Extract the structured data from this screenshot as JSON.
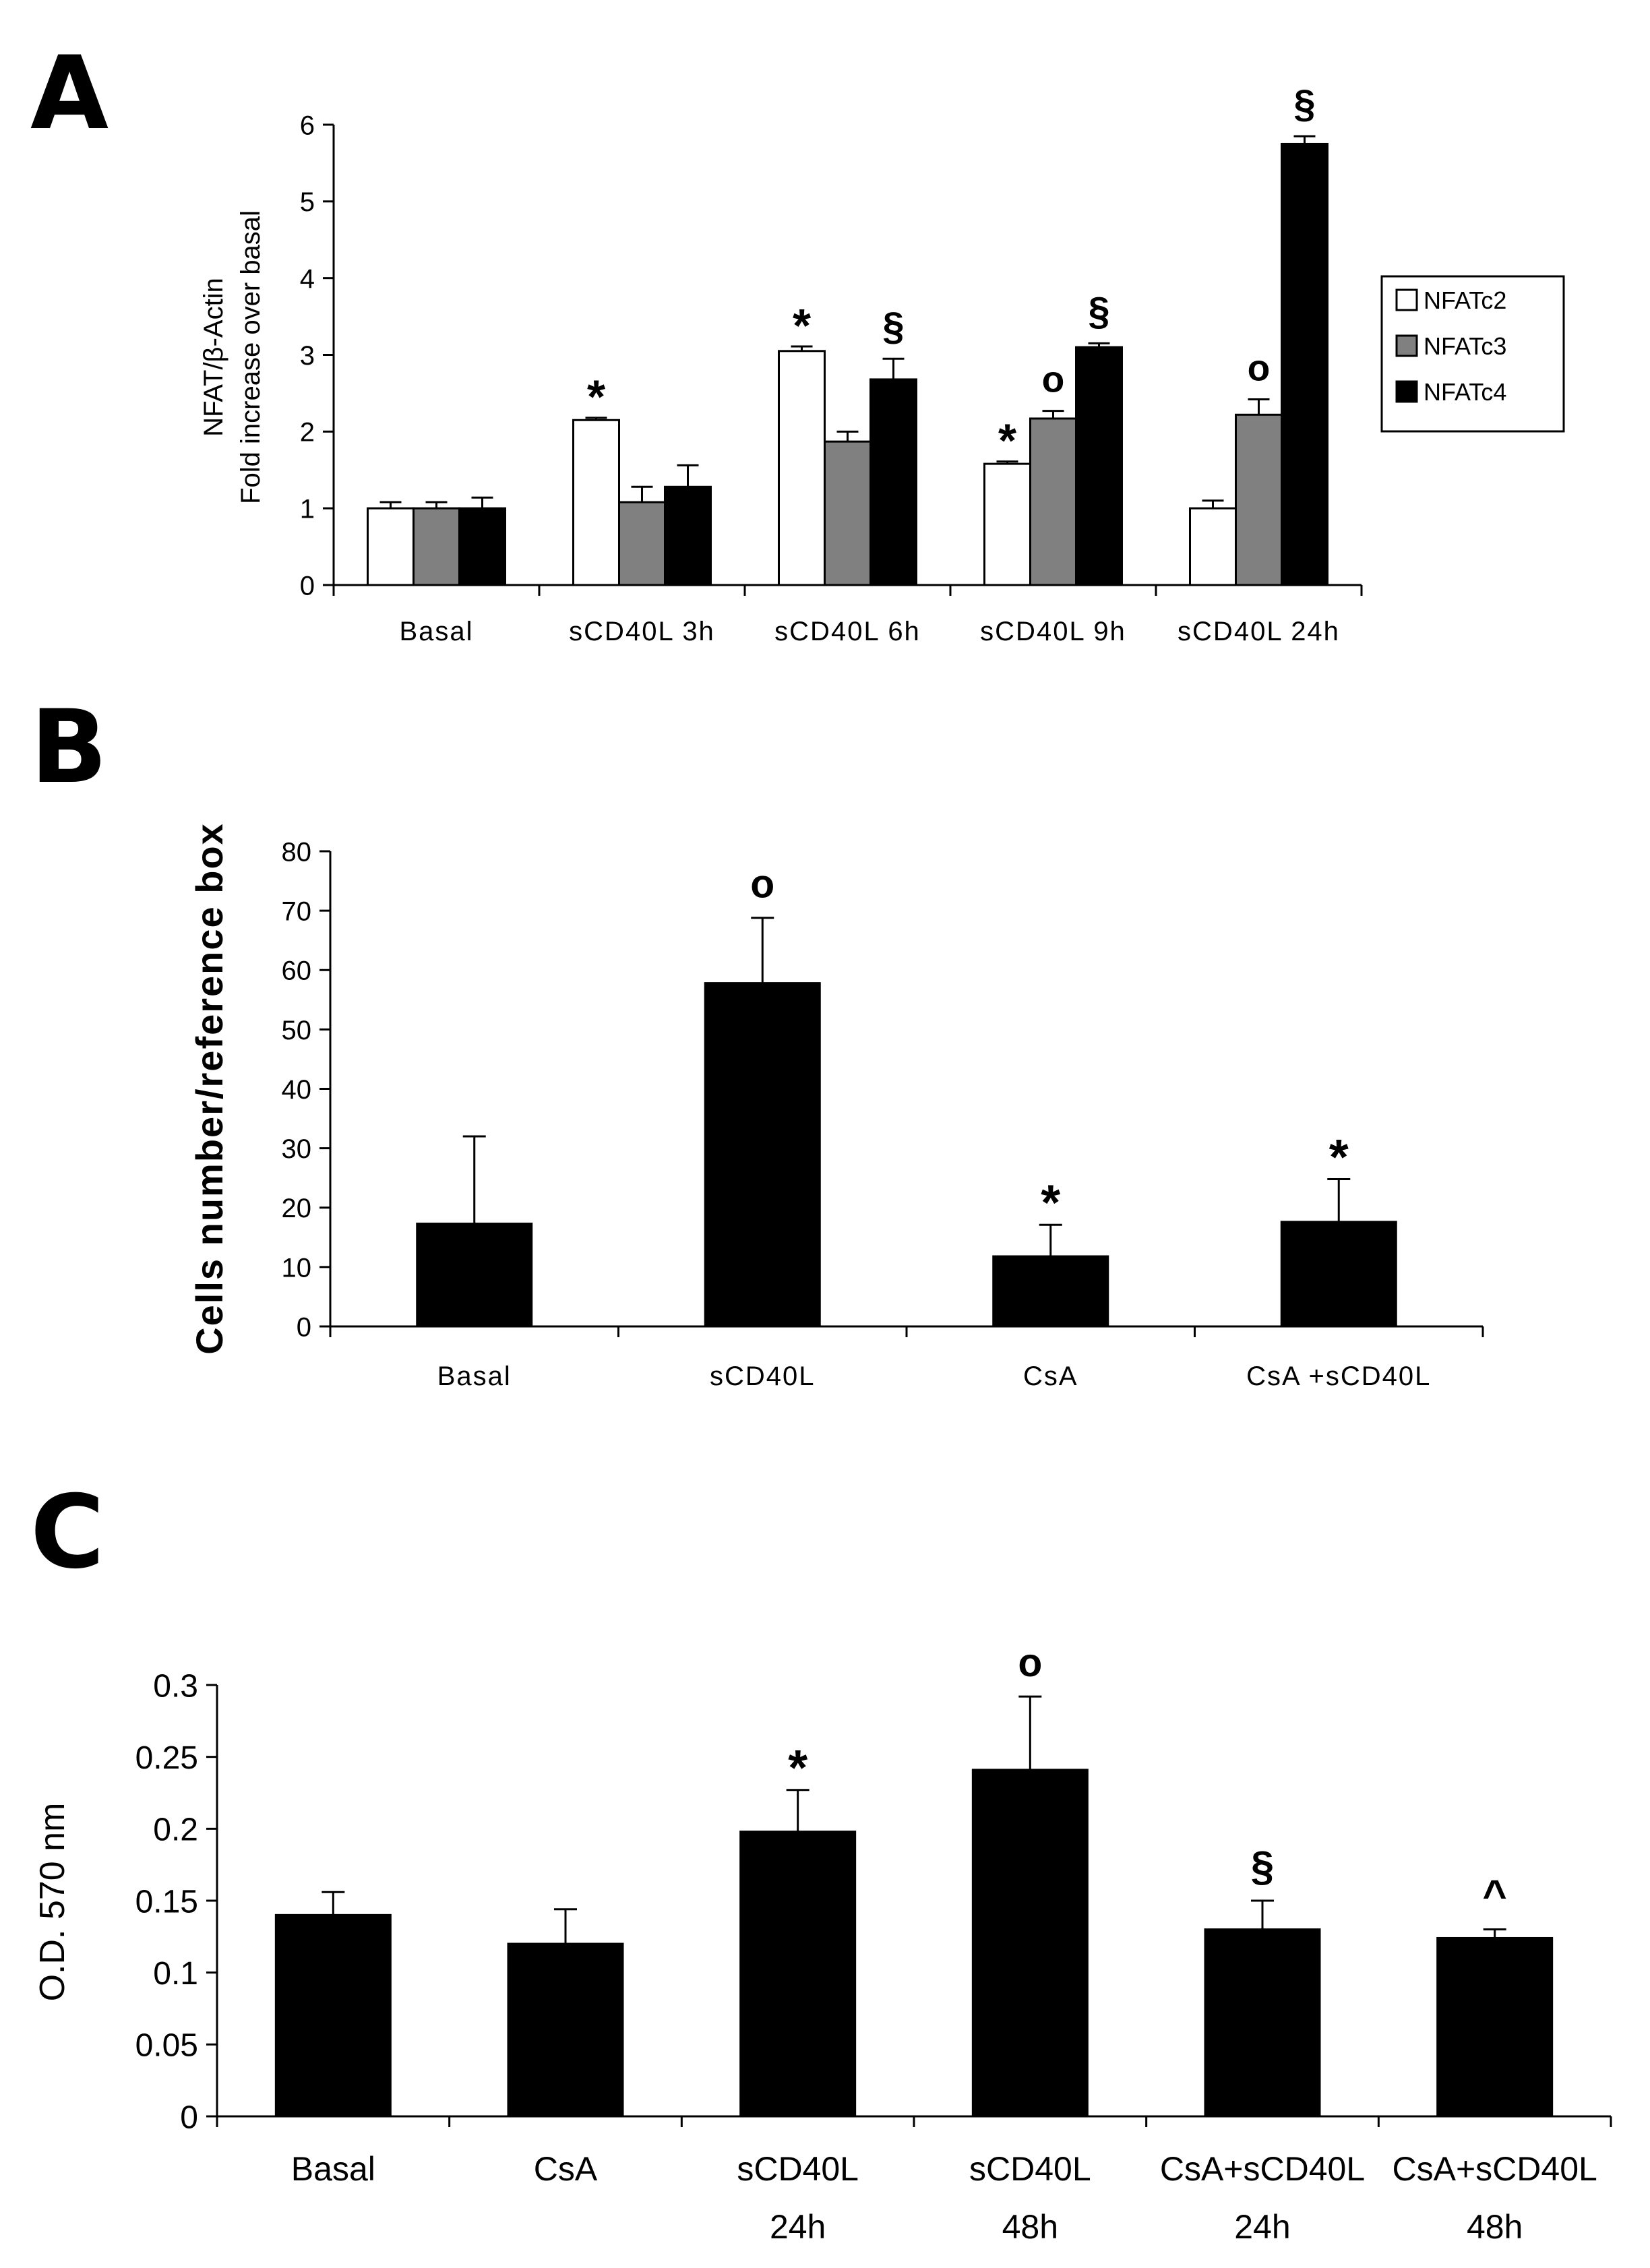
{
  "chart_data": [
    {
      "panel_label": "A",
      "type": "bar",
      "ylabel_line1": "NFAT/β-Actin",
      "ylabel_line2": "Fold increase over basal",
      "ylim": [
        0,
        6
      ],
      "yticks": [
        "0",
        "1",
        "2",
        "3",
        "4",
        "5",
        "6"
      ],
      "categories": [
        "Basal",
        "sCD40L 3h",
        "sCD40L 6h",
        "sCD40L 9h",
        "sCD40L 24h"
      ],
      "legend_position": "right",
      "series": [
        {
          "name": "NFATc2",
          "color": "#ffffff",
          "values": [
            1.0,
            2.15,
            3.05,
            1.58,
            1.0
          ],
          "errors": [
            0.08,
            0.03,
            0.06,
            0.03,
            0.1
          ]
        },
        {
          "name": "NFATc3",
          "color": "#808080",
          "values": [
            1.0,
            1.08,
            1.87,
            2.17,
            2.22
          ],
          "errors": [
            0.08,
            0.2,
            0.13,
            0.1,
            0.2
          ]
        },
        {
          "name": "NFATc4",
          "color": "#000000",
          "values": [
            1.0,
            1.28,
            2.68,
            3.1,
            5.75
          ],
          "errors": [
            0.14,
            0.28,
            0.27,
            0.05,
            0.1
          ]
        }
      ],
      "annotations": [
        {
          "category": 1,
          "series": 0,
          "symbol": "*"
        },
        {
          "category": 2,
          "series": 0,
          "symbol": "*"
        },
        {
          "category": 2,
          "series": 2,
          "symbol": "§"
        },
        {
          "category": 3,
          "series": 0,
          "symbol": "*"
        },
        {
          "category": 3,
          "series": 1,
          "symbol": "o"
        },
        {
          "category": 3,
          "series": 2,
          "symbol": "§"
        },
        {
          "category": 4,
          "series": 1,
          "symbol": "o"
        },
        {
          "category": 4,
          "series": 2,
          "symbol": "§"
        }
      ]
    },
    {
      "panel_label": "B",
      "type": "bar",
      "ylabel": "Cells number/reference  box",
      "ylim": [
        0,
        80
      ],
      "yticks": [
        "0",
        "10",
        "20",
        "30",
        "40",
        "50",
        "60",
        "70",
        "80"
      ],
      "categories": [
        "Basal",
        "sCD40L",
        "CsA",
        "CsA +sCD40L"
      ],
      "series": [
        {
          "color": "#000000",
          "values": [
            17.3,
            57.8,
            11.8,
            17.6
          ],
          "errors": [
            14.7,
            11.0,
            5.3,
            7.2
          ]
        }
      ],
      "annotations": [
        {
          "category": 1,
          "symbol": "o"
        },
        {
          "category": 2,
          "symbol": "*"
        },
        {
          "category": 3,
          "symbol": "*"
        }
      ]
    },
    {
      "panel_label": "C",
      "type": "bar",
      "ylabel": "O.D. 570 nm",
      "ylim": [
        0,
        0.3
      ],
      "yticks": [
        "0",
        "0.05",
        "0.1",
        "0.15",
        "0.2",
        "0.25",
        "0.3"
      ],
      "categories": [
        [
          "Basal"
        ],
        [
          "CsA"
        ],
        [
          "sCD40L",
          "24h"
        ],
        [
          "sCD40L",
          "48h"
        ],
        [
          "CsA+sCD40L",
          "24h"
        ],
        [
          "CsA+sCD40L",
          "48h"
        ]
      ],
      "series": [
        {
          "color": "#000000",
          "values": [
            0.14,
            0.12,
            0.198,
            0.241,
            0.13,
            0.124
          ],
          "errors": [
            0.016,
            0.024,
            0.029,
            0.051,
            0.02,
            0.006
          ]
        }
      ],
      "annotations": [
        {
          "category": 2,
          "symbol": "*"
        },
        {
          "category": 3,
          "symbol": "o"
        },
        {
          "category": 4,
          "symbol": "§"
        },
        {
          "category": 5,
          "symbol": "^"
        }
      ]
    }
  ]
}
